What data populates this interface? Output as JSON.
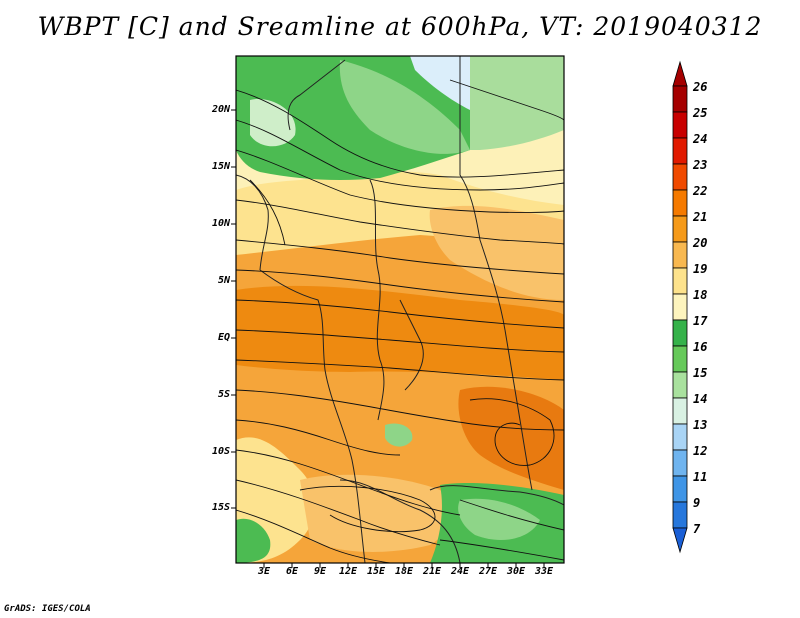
{
  "title": "WBPT [C] and Sreamline at 600hPa, VT: 2019040312",
  "footer": "GrADS: IGES/COLA",
  "map": {
    "lat_labels": [
      "20N",
      "15N",
      "10N",
      "5N",
      "EQ",
      "5S",
      "10S",
      "15S"
    ],
    "lat_values": [
      20,
      15,
      10,
      5,
      0,
      -5,
      -10,
      -15
    ],
    "lon_labels": [
      "3E",
      "6E",
      "9E",
      "12E",
      "15E",
      "18E",
      "21E",
      "24E",
      "27E",
      "30E",
      "33E"
    ],
    "lon_values": [
      3,
      6,
      9,
      12,
      15,
      18,
      21,
      24,
      27,
      30,
      33
    ],
    "extent": {
      "lon_min": 0,
      "lon_max": 35,
      "lat_min": -20,
      "lat_max": 25
    }
  },
  "colorbar": {
    "levels": [
      "26",
      "25",
      "24",
      "23",
      "22",
      "21",
      "20",
      "19",
      "18",
      "17",
      "16",
      "15",
      "14",
      "13",
      "12",
      "11",
      "9",
      "7"
    ],
    "colors": [
      "#a50000",
      "#c80000",
      "#e11a00",
      "#f04a00",
      "#f57a00",
      "#f59a1a",
      "#f8b850",
      "#fde28c",
      "#fdf4be",
      "#35b24a",
      "#66c95a",
      "#a9e19e",
      "#d9f1e3",
      "#a9d4f5",
      "#6fb4ef",
      "#3f95e6",
      "#2677dc",
      "#1a5fd6"
    ]
  },
  "colors": {
    "orange_dark": "#ee8a10",
    "orange": "#f5a53a",
    "light_orange": "#f9c26a",
    "yellow": "#fde38f",
    "pale_yellow": "#fdf1b8",
    "green": "#4cbb52",
    "light_green": "#8ed588",
    "pale_green": "#cfeec9",
    "light_blue": "#dbeefa"
  }
}
